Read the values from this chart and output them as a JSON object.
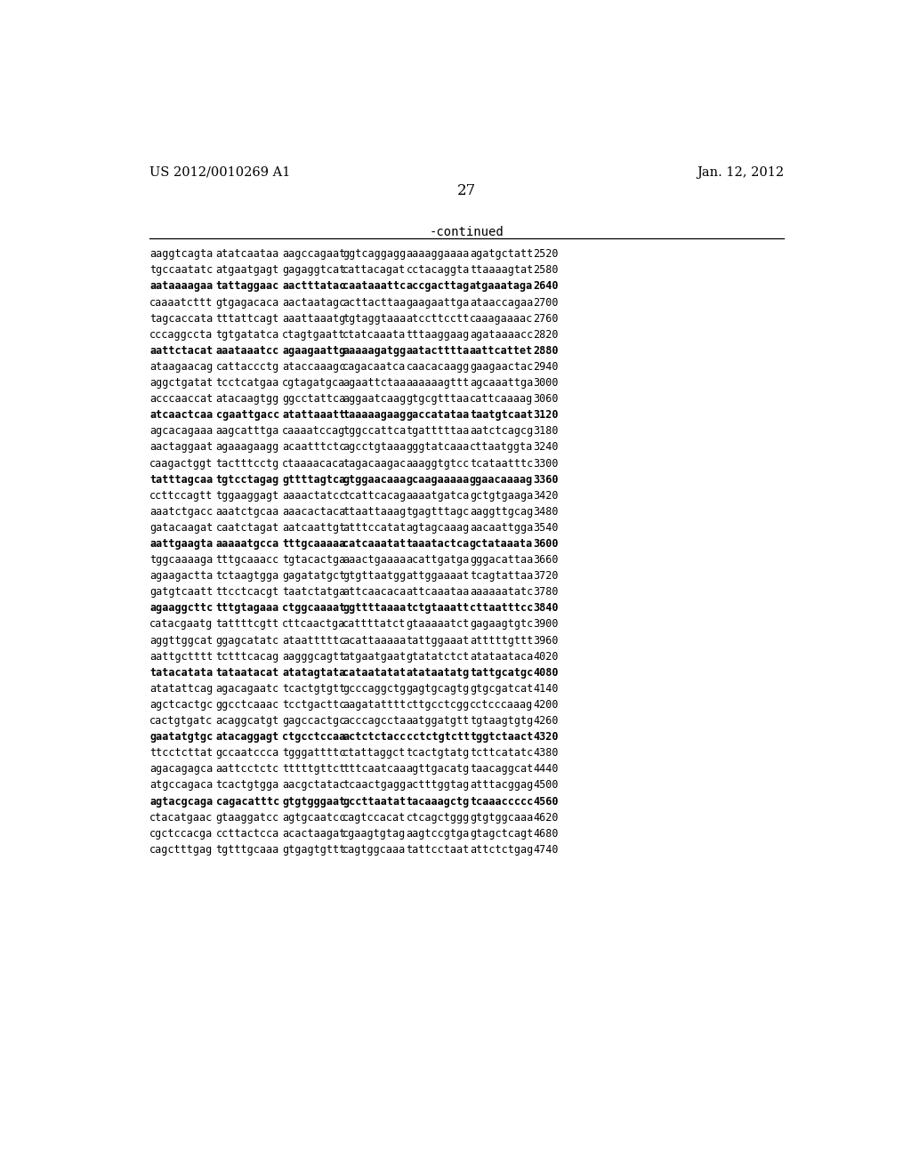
{
  "header_left": "US 2012/0010269 A1",
  "header_right": "Jan. 12, 2012",
  "page_number": "27",
  "continued_label": "-continued",
  "bg_color": "#ffffff",
  "text_color": "#000000",
  "font_size": 8.5,
  "header_font_size": 10.5,
  "page_num_font_size": 12,
  "continued_font_size": 10,
  "sequence_lines": [
    [
      "aaggtcagta",
      "atatcaataa",
      "aagccagaat",
      "ggtcaggagg",
      "aaaaggaaaa",
      "agatgctatt",
      "2520"
    ],
    [
      "tgccaatatc",
      "atgaatgagt",
      "gagaggtcat",
      "cattacagat",
      "cctacaggta",
      "ttaaaagtat",
      "2580"
    ],
    [
      "aataaaagaa",
      "tattaggaac",
      "aactttatac",
      "caataaattc",
      "accgacttag",
      "atgaaataga",
      "2640"
    ],
    [
      "caaaatcttt",
      "gtgagacaca",
      "aactaatagc",
      "acttacttaa",
      "gaagaattga",
      "ataaccagaa",
      "2700"
    ],
    [
      "tagcaccata",
      "tttattcagt",
      "aaattaaatg",
      "tgtaggtaaa",
      "atccttcctt",
      "caaagaaaac",
      "2760"
    ],
    [
      "cccaggccta",
      "tgtgatatca",
      "ctagtgaatt",
      "ctatcaaata",
      "tttaaggaag",
      "agataaaacc",
      "2820"
    ],
    [
      "aattctacat",
      "aaataaatcc",
      "agaagaattg",
      "aaaaagatgg",
      "aatactttta",
      "aattcattet",
      "2880"
    ],
    [
      "ataagaacag",
      "cattaccctg",
      "ataccaaagc",
      "cagacaatca",
      "caacacaagg",
      "gaagaactac",
      "2940"
    ],
    [
      "aggctgatat",
      "tcctcatgaa",
      "cgtagatgca",
      "agaattctaa",
      "aaaaaagttt",
      "agcaaattga",
      "3000"
    ],
    [
      "acccaaccat",
      "atacaagtgg",
      "ggcctattca",
      "aggaatcaag",
      "gtgcgtttaa",
      "cattcaaaag",
      "3060"
    ],
    [
      "atcaactcaa",
      "cgaattgacc",
      "atattaaatt",
      "taaaaagaag",
      "gaccatataa",
      "taatgtcaat",
      "3120"
    ],
    [
      "agcacagaaa",
      "aagcatttga",
      "caaaatccag",
      "tggccattca",
      "tgatttttaa",
      "aatctcagcg",
      "3180"
    ],
    [
      "aactaggaat",
      "agaaagaagg",
      "acaatttctc",
      "agcctgtaaa",
      "gggtatcaaa",
      "cttaatggta",
      "3240"
    ],
    [
      "caagactggt",
      "tactttcctg",
      "ctaaaacaca",
      "tagacaagac",
      "aaaggtgtcc",
      "tcataatttc",
      "3300"
    ],
    [
      "tatttagcaa",
      "tgtcctagag",
      "gttttagtca",
      "gtggaacaaa",
      "gcaagaaaaa",
      "ggaacaaaag",
      "3360"
    ],
    [
      "ccttccagtt",
      "tggaaggagt",
      "aaaactatcc",
      "tcattcacag",
      "aaaatgatca",
      "gctgtgaaga",
      "3420"
    ],
    [
      "aaatctgacc",
      "aaatctgcaa",
      "aaacactaca",
      "ttaattaaag",
      "tgagtttagc",
      "aaggttgcag",
      "3480"
    ],
    [
      "gatacaagat",
      "caatctagat",
      "aatcaattgt",
      "atttccatat",
      "agtagcaaag",
      "aacaattgga",
      "3540"
    ],
    [
      "aattgaagta",
      "aaaaatgcca",
      "tttgcaaaaa",
      "catcaaatat",
      "taaatactca",
      "gctataaata",
      "3600"
    ],
    [
      "tggcaaaaga",
      "tttgcaaacc",
      "tgtacactga",
      "aaactgaaaa",
      "acattgatga",
      "gggacattaa",
      "3660"
    ],
    [
      "agaagactta",
      "tctaagtgga",
      "gagatatgct",
      "gtgttaatgg",
      "attggaaaat",
      "tcagtattaa",
      "3720"
    ],
    [
      "gatgtcaatt",
      "ttcctcacgt",
      "taatctatga",
      "attcaacaca",
      "attcaaataa",
      "aaaaaatatc",
      "3780"
    ],
    [
      "agaaggcttc",
      "tttgtagaaa",
      "ctggcaaaat",
      "ggttttaaaa",
      "tctgtaaatt",
      "cttaatttcc",
      "3840"
    ],
    [
      "catacgaatg",
      "tattttcgtt",
      "cttcaactga",
      "cattttatct",
      "gtaaaaatct",
      "gagaagtgtc",
      "3900"
    ],
    [
      "aggttggcat",
      "ggagcatatc",
      "ataatttttc",
      "acattaaaaa",
      "tattggaaat",
      "atttttgttt",
      "3960"
    ],
    [
      "aattgctttt",
      "tctttcacag",
      "aagggcagtt",
      "atgaatgaat",
      "gtatatctct",
      "atataataca",
      "4020"
    ],
    [
      "tatacatata",
      "tataatacat",
      "atatagtata",
      "cataatatat",
      "atataatatg",
      "tattgcatgc",
      "4080"
    ],
    [
      "atatattcag",
      "agacagaatc",
      "tcactgtgtt",
      "gcccaggctg",
      "gagtgcagtg",
      "gtgcgatcat",
      "4140"
    ],
    [
      "agctcactgc",
      "ggcctcaaac",
      "tcctgacttc",
      "aagatatttt",
      "cttgcctcgg",
      "cctcccaaag",
      "4200"
    ],
    [
      "cactgtgatc",
      "acaggcatgt",
      "gagccactgc",
      "acccagccta",
      "aatggatgtt",
      "tgtaagtgtg",
      "4260"
    ],
    [
      "gaatatgtgc",
      "atacaggagt",
      "ctgcctccaa",
      "actctctacc",
      "cctctgtctt",
      "tggtctaact",
      "4320"
    ],
    [
      "ttcctcttat",
      "gccaatccca",
      "tgggattttc",
      "ctattaggct",
      "tcactgtatg",
      "tcttcatatc",
      "4380"
    ],
    [
      "agacagagca",
      "aattcctctc",
      "tttttgttct",
      "tttcaatcaa",
      "agttgacatg",
      "taacaggcat",
      "4440"
    ],
    [
      "atgccagaca",
      "tcactgtgga",
      "aacgctatac",
      "tcaactgagg",
      "actttggtag",
      "atttacggag",
      "4500"
    ],
    [
      "agtacgcaga",
      "cagacatttc",
      "gtgtgggaat",
      "gccttaatat",
      "tacaaagctg",
      "tcaaaccccc",
      "4560"
    ],
    [
      "ctacatgaac",
      "gtaaggatcc",
      "agtgcaatcc",
      "cagtccacat",
      "ctcagctggg",
      "gtgtggcaaa",
      "4620"
    ],
    [
      "cgctccacga",
      "ccttactcca",
      "acactaagat",
      "cgaagtgtag",
      "aagtccgtga",
      "gtagctcagt",
      "4680"
    ],
    [
      "cagctttgag",
      "tgtttgcaaa",
      "gtgagtgttt",
      "cagtggcaaa",
      "tattcctaat",
      "attctctgag",
      "4740"
    ]
  ],
  "bold_indices": [
    2,
    6,
    10,
    14,
    18,
    22,
    26,
    30,
    34
  ]
}
